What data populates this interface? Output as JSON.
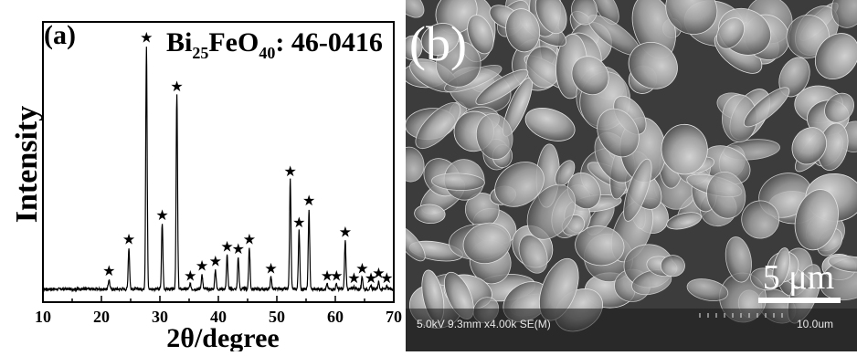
{
  "panel_a": {
    "label": "(a)",
    "phase": {
      "base": "Bi",
      "sub1": "25",
      "mid": "FeO",
      "sub2": "40",
      "card": ": 46-0416"
    },
    "chart_data": {
      "type": "line",
      "xlabel": "2θ/degree",
      "ylabel": "Intensity",
      "xlim": [
        10,
        70
      ],
      "xticks": [
        10,
        20,
        30,
        40,
        50,
        60,
        70
      ],
      "y_ticks_shown": false,
      "grid": false,
      "baseline": 0.02,
      "peak_marker": "★",
      "peaks": [
        {
          "x": 21.3,
          "y": 0.04
        },
        {
          "x": 24.7,
          "y": 0.17
        },
        {
          "x": 27.7,
          "y": 1.0
        },
        {
          "x": 30.4,
          "y": 0.27
        },
        {
          "x": 32.9,
          "y": 0.8
        },
        {
          "x": 35.2,
          "y": 0.02
        },
        {
          "x": 37.2,
          "y": 0.06
        },
        {
          "x": 39.5,
          "y": 0.08
        },
        {
          "x": 41.5,
          "y": 0.14
        },
        {
          "x": 43.4,
          "y": 0.13
        },
        {
          "x": 45.3,
          "y": 0.17
        },
        {
          "x": 49.0,
          "y": 0.05
        },
        {
          "x": 52.3,
          "y": 0.45
        },
        {
          "x": 53.8,
          "y": 0.24
        },
        {
          "x": 55.5,
          "y": 0.33
        },
        {
          "x": 58.6,
          "y": 0.02
        },
        {
          "x": 60.2,
          "y": 0.02
        },
        {
          "x": 61.7,
          "y": 0.2
        },
        {
          "x": 63.2,
          "y": 0.01
        },
        {
          "x": 64.6,
          "y": 0.05
        },
        {
          "x": 66.1,
          "y": 0.01
        },
        {
          "x": 67.4,
          "y": 0.03
        },
        {
          "x": 68.8,
          "y": 0.01
        }
      ]
    }
  },
  "panel_b": {
    "label": "(b)",
    "scale_bar": "5 μm",
    "info_bar": "5.0kV 9.3mm x4.00k SE(M)",
    "scale_ticks_label": "10.0um"
  }
}
